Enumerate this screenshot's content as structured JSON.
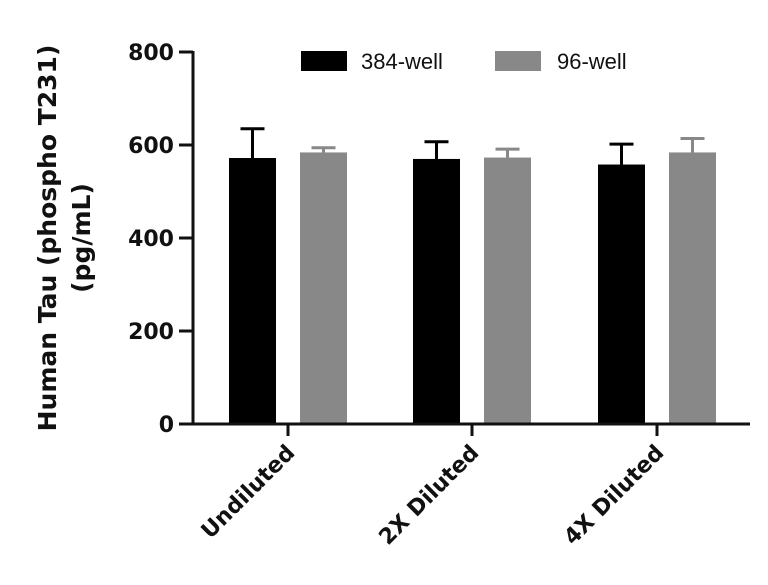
{
  "chart_data": {
    "type": "bar",
    "title": "",
    "xlabel": "",
    "ylabel_line1": "Human Tau (phospho T231)",
    "ylabel_line2": "(pg/mL)",
    "categories": [
      "Undiluted",
      "2X Diluted",
      "4X Diluted"
    ],
    "ylim": [
      0,
      800
    ],
    "yticks": [
      0,
      200,
      400,
      600,
      800
    ],
    "grid": false,
    "legend_position": "top-right",
    "series": [
      {
        "name": "384-well",
        "color": "#000000",
        "values": [
          572,
          570,
          558
        ],
        "errors": [
          63,
          37,
          44
        ]
      },
      {
        "name": "96-well",
        "color": "#888888",
        "values": [
          584,
          573,
          584
        ],
        "errors": [
          10,
          18,
          30
        ]
      }
    ]
  }
}
